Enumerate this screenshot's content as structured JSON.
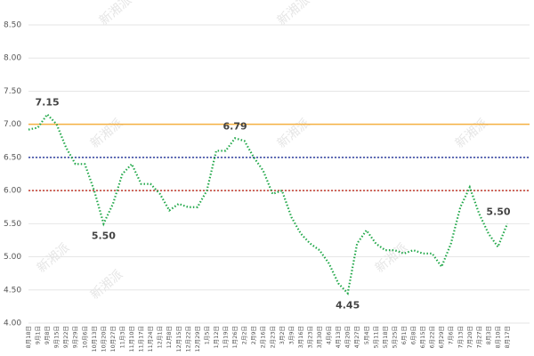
{
  "chart_data": {
    "type": "line",
    "watermark": "新湘派",
    "categories": [
      "8月18日",
      "9月1日",
      "9月8日",
      "9月15日",
      "9月22日",
      "9月29日",
      "10月6日",
      "10月13日",
      "10月20日",
      "10月27日",
      "11月3日",
      "11月10日",
      "11月17日",
      "11月24日",
      "12月1日",
      "12月8日",
      "12月15日",
      "12月22日",
      "12月29日",
      "1月5日",
      "1月12日",
      "1月19日",
      "1月26日",
      "2月2日",
      "2月9日",
      "2月16日",
      "2月23日",
      "3月2日",
      "3月9日",
      "3月16日",
      "3月23日",
      "3月30日",
      "4月6日",
      "4月13日",
      "4月20日",
      "4月27日",
      "5月4日",
      "5月11日",
      "5月18日",
      "5月25日",
      "6月1日",
      "6月8日",
      "6月15日",
      "6月22日",
      "6月29日",
      "7月6日",
      "7月13日",
      "7月20日",
      "7月27日",
      "8月3日",
      "8月10日",
      "8月17日"
    ],
    "series": [
      {
        "color": "#22a84a",
        "values": [
          6.92,
          6.95,
          7.15,
          7.0,
          6.65,
          6.4,
          6.4,
          6.0,
          5.5,
          5.8,
          6.25,
          6.4,
          6.1,
          6.1,
          5.95,
          5.7,
          5.8,
          5.75,
          5.75,
          6.0,
          6.6,
          6.6,
          6.79,
          6.75,
          6.5,
          6.3,
          5.95,
          6.0,
          5.6,
          5.35,
          5.2,
          5.1,
          4.9,
          4.6,
          4.45,
          5.2,
          5.4,
          5.2,
          5.1,
          5.1,
          5.05,
          5.1,
          5.05,
          5.05,
          4.85,
          5.2,
          5.75,
          6.05,
          5.65,
          5.35,
          5.15,
          5.5
        ],
        "value_labels": [
          null,
          null,
          "7.15",
          null,
          null,
          null,
          null,
          null,
          "5.50",
          null,
          null,
          null,
          null,
          null,
          null,
          null,
          null,
          null,
          null,
          null,
          null,
          null,
          "6.79",
          null,
          null,
          null,
          null,
          null,
          null,
          null,
          null,
          null,
          null,
          null,
          "4.45",
          null,
          null,
          null,
          null,
          null,
          null,
          null,
          null,
          null,
          null,
          null,
          null,
          null,
          null,
          null,
          null,
          "5.50"
        ]
      }
    ],
    "reference_lines": [
      {
        "value": 7,
        "color": "#f5b041",
        "style": "solid"
      },
      {
        "value": 6.5,
        "color": "#2e3f9e",
        "style": "dotted"
      },
      {
        "value": 6,
        "color": "#c0392b",
        "style": "dotted"
      }
    ],
    "ylim": [
      4,
      8.5
    ],
    "yticks": [
      {
        "value": 4,
        "label": "4.00"
      },
      {
        "value": 4.5,
        "label": "4.50"
      },
      {
        "value": 5,
        "label": "5.00"
      },
      {
        "value": 5.5,
        "label": "5.50"
      },
      {
        "value": 6,
        "label": "6.00"
      },
      {
        "value": 6.5,
        "label": "6.50"
      },
      {
        "value": 7,
        "label": "7.00"
      },
      {
        "value": 7.5,
        "label": "7.50"
      },
      {
        "value": 8,
        "label": "8.00"
      },
      {
        "value": 8.5,
        "label": "8.50"
      }
    ],
    "grid": true
  }
}
